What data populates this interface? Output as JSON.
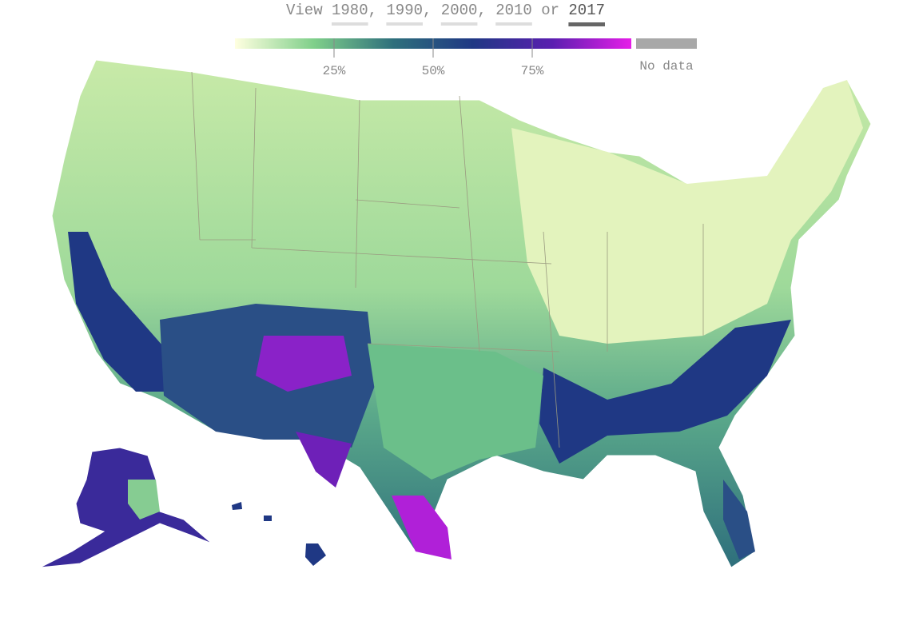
{
  "selector": {
    "prefix": "View",
    "years": [
      "1980",
      "1990",
      "2000",
      "2010",
      "2017"
    ],
    "separator": ",",
    "conjunction": "or",
    "active": 4
  },
  "legend": {
    "range": [
      0,
      100
    ],
    "ticks": [
      {
        "value": 25,
        "label": "25%"
      },
      {
        "value": 50,
        "label": "50%"
      },
      {
        "value": 75,
        "label": "75%"
      }
    ],
    "colors": [
      "#ffffe0",
      "#7fcf8a",
      "#2e6f7c",
      "#1f3884",
      "#5a1fb0",
      "#e61ee8"
    ],
    "no_data_label": "No data",
    "no_data_color": "#a8a8a8"
  }
}
